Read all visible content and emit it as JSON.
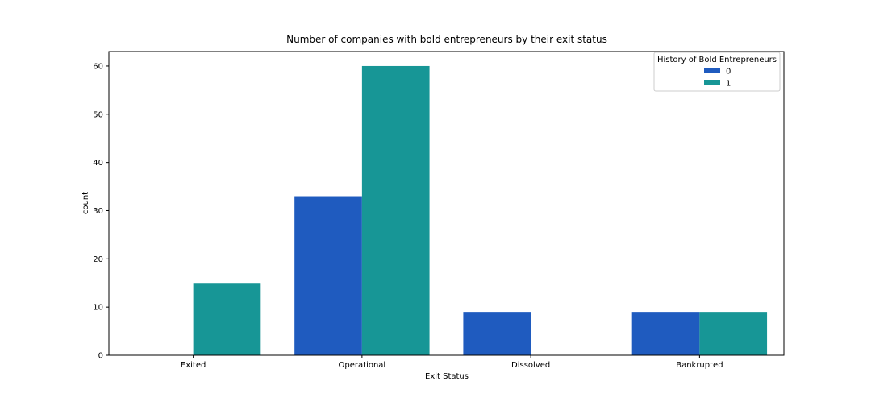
{
  "chart_data": {
    "type": "bar",
    "title": "Number of companies with bold entrepreneurs by their exit status",
    "xlabel": "Exit Status",
    "ylabel": "count",
    "categories": [
      "Exited",
      "Operational",
      "Dissolved",
      "Bankrupted"
    ],
    "series": [
      {
        "name": "0",
        "values": [
          0,
          33,
          9,
          9
        ],
        "color": "#1f5bbf"
      },
      {
        "name": "1",
        "values": [
          15,
          60,
          0,
          9
        ],
        "color": "#179696"
      }
    ],
    "ylim": [
      0,
      63
    ],
    "yticks": [
      0,
      10,
      20,
      30,
      40,
      50,
      60
    ],
    "grid": false,
    "legend": {
      "title": "History of Bold Entrepreneurs",
      "placement": "top-right"
    }
  }
}
